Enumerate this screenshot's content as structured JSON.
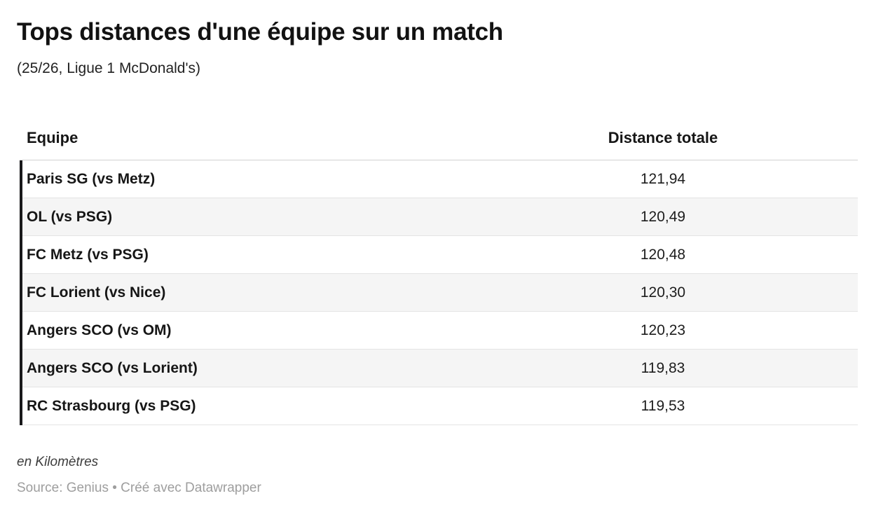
{
  "chart_data": {
    "type": "table",
    "title": "Tops distances d'une équipe sur un match",
    "subtitle": "(25/26, Ligue 1 McDonald's)",
    "columns": [
      "Equipe",
      "Distance totale"
    ],
    "unit": "Kilomètres",
    "rows": [
      {
        "team": "Paris SG (vs Metz)",
        "value": "121,94"
      },
      {
        "team": "OL (vs PSG)",
        "value": "120,49"
      },
      {
        "team": "FC Metz (vs PSG)",
        "value": "120,48"
      },
      {
        "team": "FC Lorient (vs Nice)",
        "value": "120,30"
      },
      {
        "team": "Angers SCO (vs OM)",
        "value": "120,23"
      },
      {
        "team": "Angers SCO (vs Lorient)",
        "value": "119,83"
      },
      {
        "team": "RC Strasbourg (vs PSG)",
        "value": "119,53"
      }
    ]
  },
  "footer": {
    "note": "en Kilomètres",
    "source": "Source: Genius • Créé avec Datawrapper"
  },
  "colors": {
    "row_alt": "#f5f5f5",
    "accent_bar": "#19191b",
    "text": "#1d1d1d",
    "muted": "#9e9e9e"
  }
}
